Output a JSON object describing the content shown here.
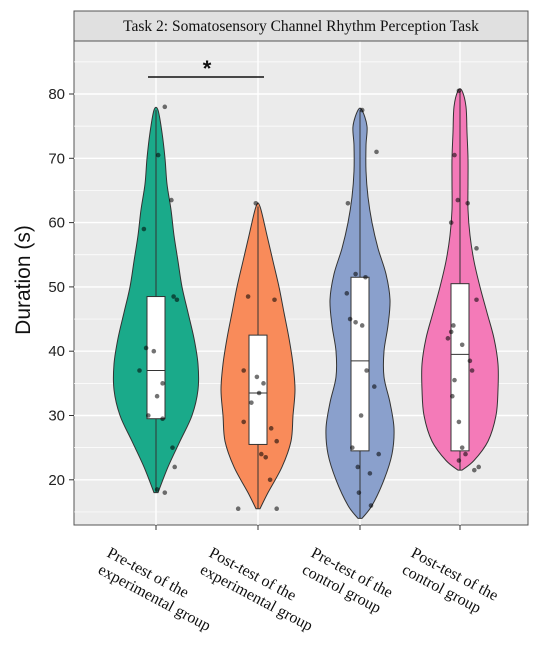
{
  "chart_data": {
    "type": "violin",
    "title": "Task 2: Somatosensory Channel Rhythm Perception Task",
    "ylabel": "Duration  (s)",
    "ylim": [
      12,
      86
    ],
    "yticks": [
      20,
      30,
      40,
      50,
      60,
      70,
      80
    ],
    "grid": true,
    "categories": [
      [
        "Pre-test of the",
        "experimental group"
      ],
      [
        "Post-test of the",
        "experimental group"
      ],
      [
        "Pre-test of the",
        "control group"
      ],
      [
        "Post-test of the",
        "control group"
      ]
    ],
    "colors": [
      "#1aaa8a",
      "#f98b5a",
      "#8aa0cc",
      "#f47ab8"
    ],
    "significance": {
      "from": 0,
      "to": 1,
      "label": "*"
    },
    "series": [
      {
        "min": 18,
        "max": 77.5,
        "box": {
          "q1": 29.5,
          "median": 37,
          "q3": 48.5
        },
        "profile": [
          [
            18,
            2
          ],
          [
            22,
            12
          ],
          [
            26,
            24
          ],
          [
            30,
            36
          ],
          [
            34,
            42
          ],
          [
            38,
            42
          ],
          [
            42,
            38
          ],
          [
            46,
            32
          ],
          [
            50,
            26
          ],
          [
            54,
            22
          ],
          [
            58,
            18
          ],
          [
            62,
            15
          ],
          [
            66,
            11
          ],
          [
            70,
            9
          ],
          [
            74,
            6
          ],
          [
            77.5,
            2
          ]
        ],
        "points": [
          [
            78,
            0.4
          ],
          [
            70.5,
            0.1
          ],
          [
            63.5,
            0.7
          ],
          [
            59,
            -0.55
          ],
          [
            48.5,
            0.8
          ],
          [
            48,
            0.95
          ],
          [
            40.5,
            -0.45
          ],
          [
            40,
            -0.1
          ],
          [
            37,
            -0.75
          ],
          [
            35,
            0.3
          ],
          [
            33,
            0.05
          ],
          [
            30,
            -0.35
          ],
          [
            29.5,
            0.3
          ],
          [
            25,
            0.75
          ],
          [
            22,
            0.85
          ],
          [
            18.5,
            0.05
          ],
          [
            18,
            0.4
          ]
        ]
      },
      {
        "min": 15.5,
        "max": 62.5,
        "box": {
          "q1": 25.5,
          "median": 33.5,
          "q3": 42.5
        },
        "profile": [
          [
            15.5,
            2
          ],
          [
            18,
            10
          ],
          [
            22,
            24
          ],
          [
            26,
            33
          ],
          [
            30,
            35
          ],
          [
            34,
            37
          ],
          [
            38,
            35
          ],
          [
            42,
            31
          ],
          [
            46,
            26
          ],
          [
            50,
            21
          ],
          [
            54,
            15
          ],
          [
            58,
            9
          ],
          [
            62.5,
            2
          ]
        ],
        "points": [
          [
            63,
            -0.1
          ],
          [
            48.5,
            -0.45
          ],
          [
            48,
            0.75
          ],
          [
            37,
            -0.65
          ],
          [
            36,
            -0.05
          ],
          [
            35,
            0.25
          ],
          [
            33.5,
            0.05
          ],
          [
            32,
            -0.3
          ],
          [
            29,
            -0.65
          ],
          [
            28,
            0.6
          ],
          [
            26,
            0.85
          ],
          [
            24,
            0.15
          ],
          [
            23.5,
            0.35
          ],
          [
            20,
            0.55
          ],
          [
            15.5,
            -0.9
          ],
          [
            15.5,
            0.85
          ]
        ]
      },
      {
        "min": 14,
        "max": 77.5,
        "box": {
          "q1": 24.5,
          "median": 38.5,
          "q3": 51.5
        },
        "profile": [
          [
            14,
            2
          ],
          [
            16,
            12
          ],
          [
            20,
            24
          ],
          [
            24,
            32
          ],
          [
            28,
            34
          ],
          [
            32,
            30
          ],
          [
            36,
            24
          ],
          [
            40,
            24
          ],
          [
            44,
            28
          ],
          [
            48,
            30
          ],
          [
            52,
            26
          ],
          [
            56,
            18
          ],
          [
            60,
            12
          ],
          [
            64,
            8
          ],
          [
            68,
            6
          ],
          [
            72,
            6
          ],
          [
            75,
            7
          ],
          [
            77.5,
            2
          ]
        ],
        "points": [
          [
            77.5,
            0.1
          ],
          [
            71,
            0.75
          ],
          [
            63,
            -0.55
          ],
          [
            52,
            -0.2
          ],
          [
            51.5,
            0.25
          ],
          [
            49,
            -0.6
          ],
          [
            45,
            -0.45
          ],
          [
            44.5,
            -0.2
          ],
          [
            44,
            0.1
          ],
          [
            37,
            0.3
          ],
          [
            34.5,
            0.65
          ],
          [
            30,
            0.05
          ],
          [
            25,
            -0.35
          ],
          [
            24,
            0.85
          ],
          [
            22,
            -0.1
          ],
          [
            21,
            0.45
          ],
          [
            18,
            -0.05
          ],
          [
            16,
            0.5
          ]
        ]
      },
      {
        "min": 21.5,
        "max": 80.5,
        "box": {
          "q1": 24.5,
          "median": 39.5,
          "q3": 50.5
        },
        "profile": [
          [
            21.5,
            2
          ],
          [
            23,
            14
          ],
          [
            26,
            28
          ],
          [
            30,
            36
          ],
          [
            34,
            38
          ],
          [
            38,
            38
          ],
          [
            42,
            34
          ],
          [
            46,
            27
          ],
          [
            50,
            20
          ],
          [
            54,
            14
          ],
          [
            58,
            10
          ],
          [
            62,
            8
          ],
          [
            66,
            8
          ],
          [
            70,
            8
          ],
          [
            74,
            7
          ],
          [
            78,
            6
          ],
          [
            80.5,
            2
          ]
        ],
        "points": [
          [
            80.5,
            -0.05
          ],
          [
            70.5,
            -0.25
          ],
          [
            63.5,
            -0.1
          ],
          [
            63,
            0.35
          ],
          [
            60,
            -0.4
          ],
          [
            56,
            0.75
          ],
          [
            48,
            0.75
          ],
          [
            44,
            -0.3
          ],
          [
            43,
            -0.4
          ],
          [
            42,
            -0.55
          ],
          [
            41,
            0.1
          ],
          [
            38.5,
            0.45
          ],
          [
            37,
            0.55
          ],
          [
            35.5,
            -0.25
          ],
          [
            33,
            -0.35
          ],
          [
            29,
            -0.05
          ],
          [
            25,
            0.1
          ],
          [
            24,
            0.25
          ],
          [
            23,
            -0.05
          ],
          [
            22,
            0.85
          ],
          [
            21.5,
            0.65
          ]
        ]
      }
    ]
  }
}
